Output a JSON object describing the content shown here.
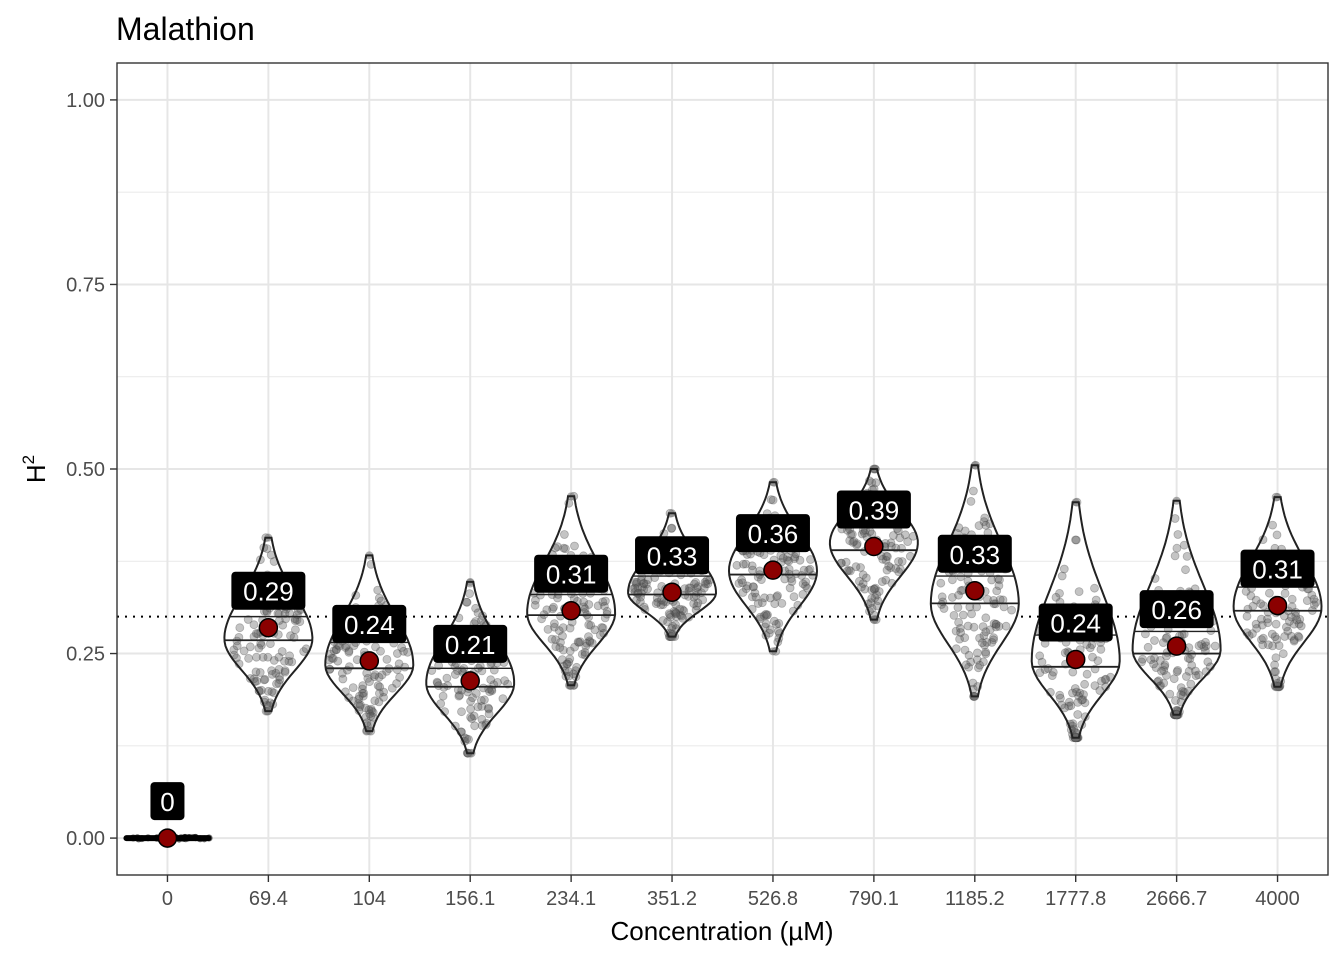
{
  "chart_data": {
    "type": "violin",
    "title": "Malathion",
    "xlabel": "Concentration (µM)",
    "ylabel_base": "H",
    "ylabel_sup": "2",
    "ylim": [
      -0.05,
      1.05
    ],
    "yticks": [
      0.0,
      0.25,
      0.5,
      0.75,
      1.0
    ],
    "ytick_labels": [
      "0.00",
      "0.25",
      "0.50",
      "0.75",
      "1.00"
    ],
    "reference_line": 0.3,
    "grid": true,
    "categories": [
      "0",
      "69.4",
      "104",
      "156.1",
      "234.1",
      "351.2",
      "526.8",
      "790.1",
      "1185.2",
      "1777.8",
      "2666.7",
      "4000"
    ],
    "means": [
      0.0,
      0.285,
      0.24,
      0.213,
      0.308,
      0.333,
      0.363,
      0.395,
      0.335,
      0.242,
      0.26,
      0.315
    ],
    "mean_labels": [
      "0",
      "0.29",
      "0.24",
      "0.21",
      "0.31",
      "0.33",
      "0.36",
      "0.39",
      "0.33",
      "0.24",
      "0.26",
      "0.31"
    ],
    "min": [
      0.0,
      0.172,
      0.145,
      0.115,
      0.207,
      0.273,
      0.253,
      0.296,
      0.192,
      0.136,
      0.167,
      0.205
    ],
    "max": [
      0.0,
      0.407,
      0.383,
      0.347,
      0.463,
      0.44,
      0.482,
      0.5,
      0.505,
      0.455,
      0.457,
      0.462
    ],
    "median": [
      0.0,
      0.268,
      0.23,
      0.205,
      0.302,
      0.33,
      0.357,
      0.39,
      0.318,
      0.232,
      0.25,
      0.308
    ],
    "q1": [
      0.0,
      0.24,
      0.205,
      0.19,
      0.28,
      0.31,
      0.333,
      0.37,
      0.28,
      0.205,
      0.23,
      0.285
    ],
    "q3": [
      0.0,
      0.3,
      0.265,
      0.23,
      0.33,
      0.355,
      0.39,
      0.43,
      0.355,
      0.275,
      0.28,
      0.34
    ]
  }
}
